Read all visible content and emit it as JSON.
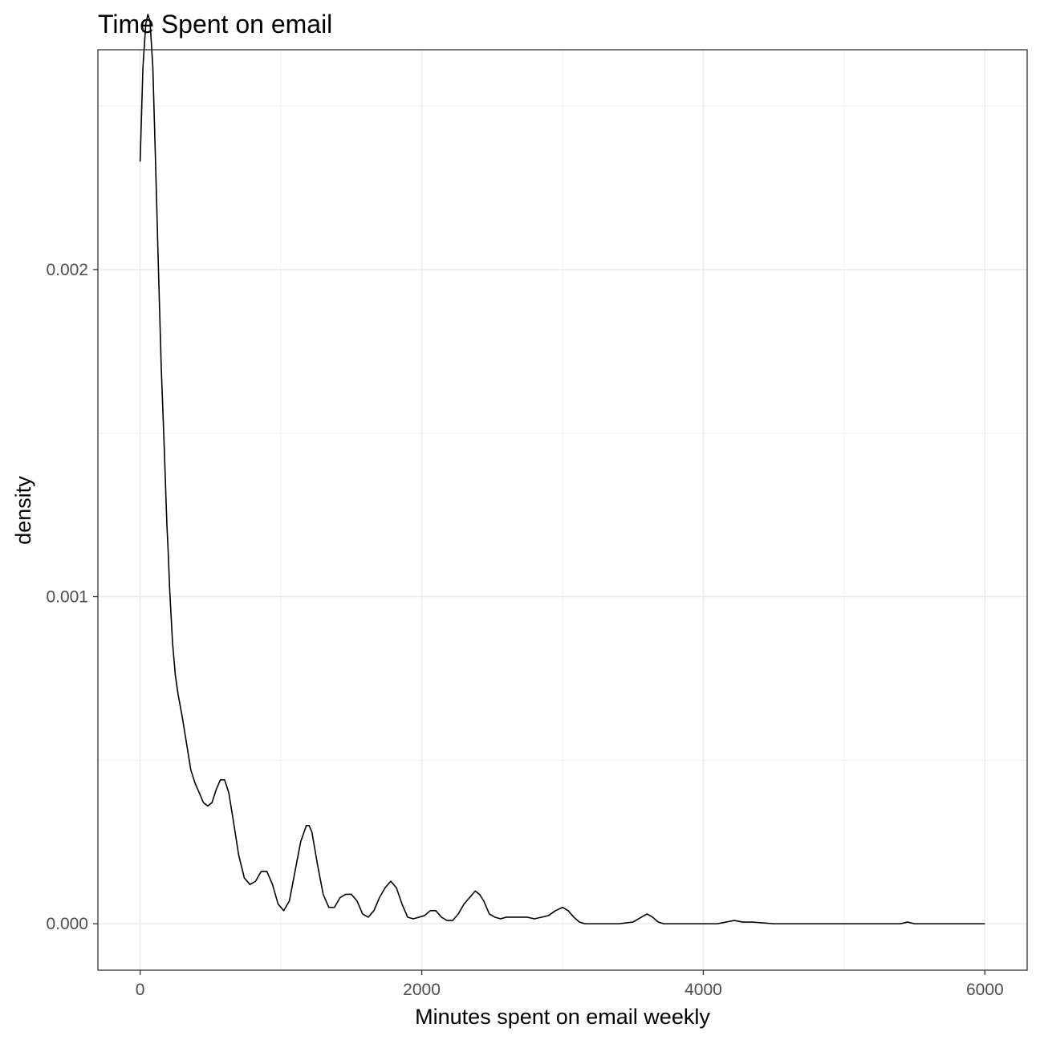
{
  "chart_data": {
    "type": "line",
    "title": "Time Spent on email",
    "xlabel": "Minutes spent on email weekly",
    "ylabel": "density",
    "xlim": [
      -300,
      6300
    ],
    "ylim": [
      -0.000142,
      0.002672
    ],
    "x_ticks": [
      0,
      2000,
      4000,
      6000
    ],
    "x_tick_labels": [
      "0",
      "2000",
      "4000",
      "6000"
    ],
    "y_ticks": [
      0.0,
      0.001,
      0.002
    ],
    "y_tick_labels": [
      "0.000",
      "0.001",
      "0.002"
    ],
    "grid": true,
    "series": [
      {
        "color": "#000000",
        "x": [
          0,
          20,
          40,
          55,
          70,
          90,
          110,
          130,
          150,
          170,
          190,
          200,
          210,
          230,
          250,
          270,
          300,
          330,
          360,
          390,
          420,
          450,
          480,
          510,
          540,
          570,
          600,
          630,
          660,
          700,
          740,
          780,
          820,
          860,
          900,
          940,
          980,
          1020,
          1060,
          1100,
          1140,
          1180,
          1200,
          1220,
          1260,
          1300,
          1340,
          1380,
          1420,
          1460,
          1500,
          1540,
          1580,
          1620,
          1660,
          1700,
          1740,
          1780,
          1800,
          1820,
          1860,
          1900,
          1940,
          1980,
          2020,
          2060,
          2100,
          2140,
          2180,
          2220,
          2260,
          2300,
          2340,
          2380,
          2410,
          2440,
          2480,
          2520,
          2560,
          2600,
          2650,
          2700,
          2750,
          2800,
          2850,
          2900,
          2950,
          3000,
          3040,
          3080,
          3120,
          3160,
          3200,
          3300,
          3400,
          3500,
          3560,
          3600,
          3640,
          3680,
          3720,
          3800,
          3900,
          4000,
          4100,
          4160,
          4220,
          4280,
          4350,
          4500,
          4700,
          5000,
          5300,
          5400,
          5450,
          5500,
          5700,
          6000
        ],
        "y": [
          0.00233,
          0.00262,
          0.00275,
          0.00278,
          0.00276,
          0.00262,
          0.00232,
          0.002,
          0.0017,
          0.00147,
          0.00122,
          0.00113,
          0.00102,
          0.00086,
          0.00076,
          0.0007,
          0.00063,
          0.00055,
          0.00047,
          0.00043,
          0.0004,
          0.00037,
          0.00036,
          0.00037,
          0.00041,
          0.00044,
          0.00044,
          0.0004,
          0.00032,
          0.00021,
          0.00014,
          0.00012,
          0.00013,
          0.00016,
          0.00016,
          0.00012,
          6e-05,
          4e-05,
          7e-05,
          0.00016,
          0.00025,
          0.0003,
          0.0003,
          0.00028,
          0.00018,
          9e-05,
          5e-05,
          5e-05,
          8e-05,
          9e-05,
          9e-05,
          7e-05,
          3e-05,
          2e-05,
          4e-05,
          8e-05,
          0.00011,
          0.00013,
          0.00012,
          0.00011,
          6e-05,
          2e-05,
          1.5e-05,
          2e-05,
          2.5e-05,
          4e-05,
          4e-05,
          2e-05,
          1e-05,
          1e-05,
          3e-05,
          6e-05,
          8e-05,
          0.0001,
          9e-05,
          7e-05,
          3e-05,
          2e-05,
          1.5e-05,
          2e-05,
          2e-05,
          2e-05,
          2e-05,
          1.5e-05,
          2e-05,
          2.5e-05,
          4e-05,
          5e-05,
          4e-05,
          2e-05,
          5e-06,
          0.0,
          0.0,
          0.0,
          0.0,
          5e-06,
          2e-05,
          3e-05,
          2e-05,
          5e-06,
          0.0,
          0.0,
          0.0,
          0.0,
          0.0,
          5e-06,
          1e-05,
          5e-06,
          5e-06,
          0.0,
          0.0,
          0.0,
          0.0,
          0.0,
          5e-06,
          0.0,
          0.0,
          0.0
        ]
      }
    ]
  }
}
